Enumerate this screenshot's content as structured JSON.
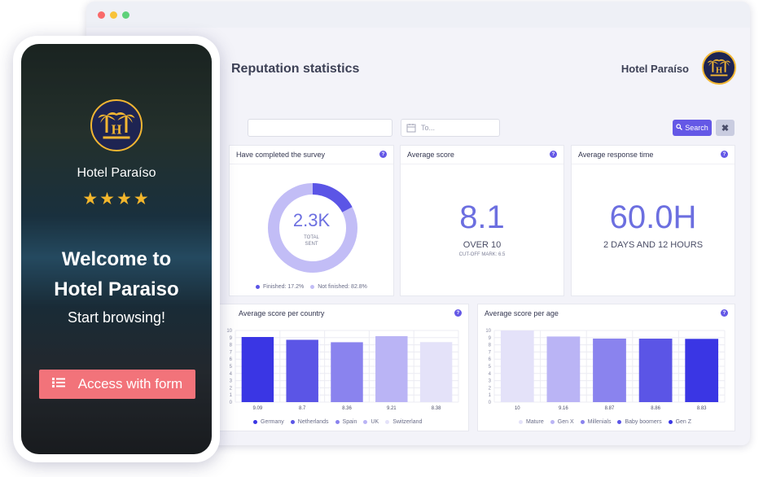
{
  "window": {
    "dots": [
      "#f96a6a",
      "#f8c33a",
      "#5ed17a"
    ]
  },
  "header": {
    "title": "Reputation statistics",
    "hotel_name": "Hotel Paraíso",
    "logo_letter": "H"
  },
  "filters": {
    "from_value": "",
    "to_placeholder": "To...",
    "search_label": "Search",
    "clear_label": "✖"
  },
  "cards": {
    "survey": {
      "title": "Have completed the survey",
      "center_value": "2.3K",
      "center_label_1": "TOTAL",
      "center_label_2": "SENT",
      "finished_fraction": 0.172,
      "legend": [
        {
          "label": "Finished: 17.2%",
          "color": "#5b55e6"
        },
        {
          "label": "Not finished: 82.8%",
          "color": "#c2bdf6"
        }
      ]
    },
    "avg_score": {
      "title": "Average score",
      "value": "8.1",
      "sub": "OVER 10",
      "note": "CUT-OFF MARK: 6.5"
    },
    "avg_response": {
      "title": "Average response time",
      "value": "60.0H",
      "sub": "2 DAYS AND 12 HOURS"
    }
  },
  "charts": {
    "country": {
      "title": "Average score per country",
      "legend": [
        "Germany",
        "Netherlands",
        "Spain",
        "UK",
        "Switzerland"
      ]
    },
    "age": {
      "title": "Average score per age",
      "legend": [
        "Mature",
        "Gen X",
        "Millenials",
        "Baby boomers",
        "Gen Z"
      ]
    }
  },
  "chart_data": [
    {
      "type": "bar",
      "title": "Average score per country",
      "categories": [
        "Germany",
        "Netherlands",
        "Spain",
        "UK",
        "Switzerland"
      ],
      "values": [
        9.09,
        8.7,
        8.36,
        9.21,
        8.38
      ],
      "value_labels": [
        "9.09",
        "8.7",
        "8.36",
        "9.21",
        "8.38"
      ],
      "colors": [
        "#3a36e4",
        "#5b55e6",
        "#8a83ee",
        "#bab4f5",
        "#e4e2f9"
      ],
      "ylim": [
        0,
        10
      ],
      "yticks": [
        0,
        1,
        2,
        3,
        4,
        5,
        6,
        7,
        8,
        9,
        10
      ],
      "grid": true,
      "legend_position": "bottom"
    },
    {
      "type": "bar",
      "title": "Average score per age",
      "categories": [
        "Mature",
        "Gen X",
        "Millenials",
        "Baby boomers",
        "Gen Z"
      ],
      "values": [
        10,
        9.16,
        8.87,
        8.86,
        8.83
      ],
      "value_labels": [
        "10",
        "9.16",
        "8.87",
        "8.86",
        "8.83"
      ],
      "colors": [
        "#e4e2f9",
        "#bab4f5",
        "#8a83ee",
        "#5b55e6",
        "#3a36e4"
      ],
      "ylim": [
        0,
        10
      ],
      "yticks": [
        0,
        1,
        2,
        3,
        4,
        5,
        6,
        7,
        8,
        9,
        10
      ],
      "grid": true,
      "legend_position": "bottom"
    }
  ],
  "phone": {
    "hotel_name": "Hotel Paraíso",
    "stars": "★★★★",
    "rating": 4,
    "welcome_line1": "Welcome to",
    "welcome_line2": "Hotel Paraiso",
    "start": "Start browsing!",
    "access_label": "Access with form",
    "accent": "#f2737a"
  },
  "colors": {
    "accent": "#6458e6",
    "star": "#f3b62c",
    "navy": "#1e2452"
  }
}
